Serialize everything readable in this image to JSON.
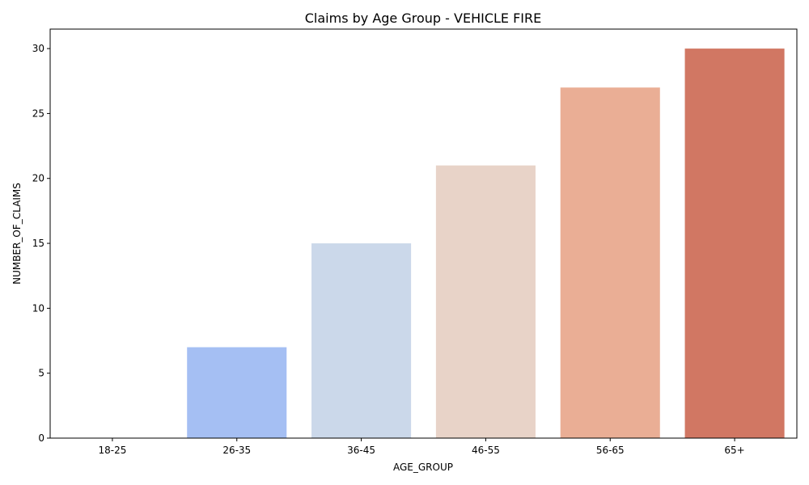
{
  "chart_data": {
    "type": "bar",
    "title": "Claims by Age Group - VEHICLE FIRE",
    "xlabel": "AGE_GROUP",
    "ylabel": "NUMBER_OF_CLAIMS",
    "categories": [
      "18-25",
      "26-35",
      "36-45",
      "46-55",
      "56-65",
      "65+"
    ],
    "values": [
      0,
      7,
      15,
      21,
      27,
      30
    ],
    "colors": [
      "#3b4cc0",
      "#a5bff3",
      "#cbd8ea",
      "#e8d3c8",
      "#eaae95",
      "#d17763"
    ],
    "ylim": [
      0,
      31.5
    ],
    "yticks": [
      0,
      5,
      10,
      15,
      20,
      25,
      30
    ],
    "grid": false,
    "legend": "none"
  }
}
